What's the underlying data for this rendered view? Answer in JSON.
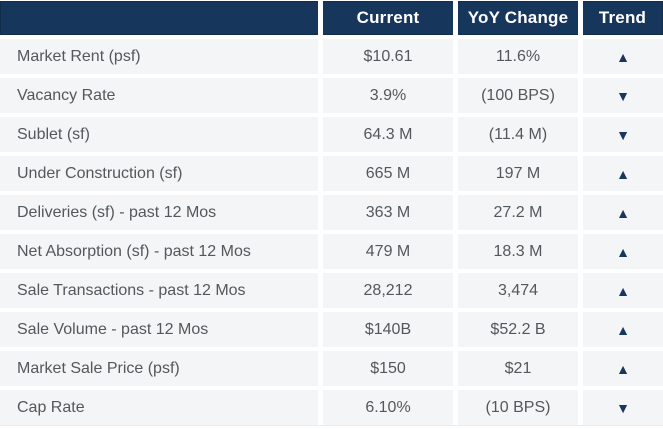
{
  "colors": {
    "header_bg": "#17365c",
    "header_text": "#ffffff",
    "row_bg": "#f3f5f6",
    "gutter": "#ffffff",
    "body_text": "#54585a",
    "trend_arrow": "#17375e"
  },
  "chart_data": {
    "type": "table",
    "title": "Market statistics: Current vs YoY Change with Trend",
    "columns": [
      "",
      "Current",
      "YoY Change",
      "Trend"
    ],
    "header": {
      "current_label": "Current",
      "yoy_label": "YoY Change",
      "trend_label": "Trend"
    },
    "icons": {
      "trend_up": "▲",
      "trend_down": "▼"
    },
    "rows": [
      {
        "label": "Market Rent (psf)",
        "current": "$10.61",
        "yoy": "11.6%",
        "trend": "up",
        "trend_glyph": "▲"
      },
      {
        "label": "Vacancy Rate",
        "current": "3.9%",
        "yoy": "(100 BPS)",
        "trend": "down",
        "trend_glyph": "▼"
      },
      {
        "label": "Sublet (sf)",
        "current": "64.3 M",
        "yoy": "(11.4 M)",
        "trend": "down",
        "trend_glyph": "▼"
      },
      {
        "label": "Under Construction (sf)",
        "current": "665 M",
        "yoy": "197 M",
        "trend": "up",
        "trend_glyph": "▲"
      },
      {
        "label": "Deliveries (sf) - past 12 Mos",
        "current": "363 M",
        "yoy": "27.2 M",
        "trend": "up",
        "trend_glyph": "▲"
      },
      {
        "label": "Net Absorption (sf) - past 12 Mos",
        "current": "479 M",
        "yoy": "18.3 M",
        "trend": "up",
        "trend_glyph": "▲"
      },
      {
        "label": "Sale Transactions - past 12 Mos",
        "current": "28,212",
        "yoy": "3,474",
        "trend": "up",
        "trend_glyph": "▲"
      },
      {
        "label": "Sale Volume - past 12 Mos",
        "current": "$140B",
        "yoy": "$52.2 B",
        "trend": "up",
        "trend_glyph": "▲"
      },
      {
        "label": "Market Sale Price (psf)",
        "current": "$150",
        "yoy": "$21",
        "trend": "up",
        "trend_glyph": "▲"
      },
      {
        "label": "Cap Rate",
        "current": "6.10%",
        "yoy": "(10 BPS)",
        "trend": "down",
        "trend_glyph": "▼"
      }
    ]
  }
}
